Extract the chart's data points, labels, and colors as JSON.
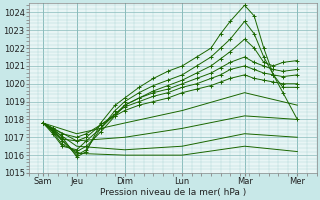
{
  "xlabel": "Pression niveau de la mer( hPa )",
  "bg_color": "#c8e8e8",
  "plot_bg_color": "#e8f5f5",
  "grid_color_major": "#88bbbb",
  "grid_color_minor": "#aad4d4",
  "line_color": "#1a6600",
  "ylim": [
    1015.0,
    1024.5
  ],
  "xlim": [
    0.0,
    6.0
  ],
  "yticks": [
    1015,
    1016,
    1017,
    1018,
    1019,
    1020,
    1021,
    1022,
    1023,
    1024
  ],
  "x_labels": [
    "Sam",
    "Jeu",
    "Dim",
    "Lun",
    "Mar",
    "Mer"
  ],
  "x_positions": [
    0.3,
    1.0,
    2.0,
    3.2,
    4.5,
    5.6
  ],
  "lines": [
    {
      "x": [
        0.3,
        0.5,
        0.7,
        1.0,
        1.2,
        1.5,
        1.8,
        2.0,
        2.3,
        2.6,
        2.9,
        3.2,
        3.5,
        3.8,
        4.0,
        4.2,
        4.5,
        4.7,
        4.9,
        5.1,
        5.3,
        5.6
      ],
      "y": [
        1017.8,
        1017.5,
        1017.0,
        1015.9,
        1016.2,
        1017.8,
        1018.8,
        1019.2,
        1019.8,
        1020.3,
        1020.7,
        1021.0,
        1021.5,
        1022.0,
        1022.8,
        1023.5,
        1024.4,
        1023.8,
        1022.0,
        1020.5,
        1019.5,
        1018.0
      ],
      "marker": true
    },
    {
      "x": [
        0.3,
        0.5,
        0.7,
        1.0,
        1.2,
        1.5,
        1.8,
        2.0,
        2.3,
        2.6,
        2.9,
        3.2,
        3.5,
        3.8,
        4.0,
        4.2,
        4.5,
        4.7,
        4.9,
        5.1,
        5.3,
        5.6
      ],
      "y": [
        1017.8,
        1017.4,
        1016.8,
        1016.0,
        1016.3,
        1017.5,
        1018.5,
        1019.0,
        1019.5,
        1019.9,
        1020.2,
        1020.5,
        1021.0,
        1021.5,
        1022.0,
        1022.5,
        1023.5,
        1022.8,
        1021.5,
        1020.5,
        1019.8,
        1019.8
      ],
      "marker": true
    },
    {
      "x": [
        0.3,
        0.5,
        0.7,
        1.0,
        1.2,
        1.5,
        1.8,
        2.0,
        2.3,
        2.6,
        2.9,
        3.2,
        3.5,
        3.8,
        4.0,
        4.2,
        4.5,
        4.7,
        4.9,
        5.1,
        5.3,
        5.6
      ],
      "y": [
        1017.8,
        1017.3,
        1016.6,
        1016.2,
        1016.5,
        1017.3,
        1018.2,
        1018.8,
        1019.2,
        1019.6,
        1019.9,
        1020.2,
        1020.6,
        1021.0,
        1021.4,
        1021.8,
        1022.5,
        1022.0,
        1021.2,
        1021.0,
        1021.2,
        1021.3
      ],
      "marker": true
    },
    {
      "x": [
        0.3,
        0.5,
        0.7,
        1.0,
        1.2,
        1.5,
        1.8,
        2.0,
        2.3,
        2.6,
        2.9,
        3.2,
        3.5,
        3.8,
        4.0,
        4.2,
        4.5,
        4.7,
        4.9,
        5.1,
        5.3,
        5.6
      ],
      "y": [
        1017.8,
        1017.2,
        1016.5,
        1016.3,
        1016.8,
        1017.5,
        1018.3,
        1018.8,
        1019.2,
        1019.5,
        1019.7,
        1020.0,
        1020.3,
        1020.6,
        1020.9,
        1021.2,
        1021.5,
        1021.2,
        1021.0,
        1020.8,
        1020.7,
        1020.8
      ],
      "marker": true
    },
    {
      "x": [
        0.3,
        0.5,
        0.7,
        1.0,
        1.2,
        1.5,
        1.8,
        2.0,
        2.3,
        2.6,
        2.9,
        3.2,
        3.5,
        3.8,
        4.0,
        4.2,
        4.5,
        4.7,
        4.9,
        5.1,
        5.3,
        5.6
      ],
      "y": [
        1017.8,
        1017.4,
        1016.9,
        1016.8,
        1017.0,
        1017.7,
        1018.3,
        1018.7,
        1019.0,
        1019.3,
        1019.5,
        1019.8,
        1020.0,
        1020.3,
        1020.5,
        1020.8,
        1021.0,
        1020.8,
        1020.6,
        1020.5,
        1020.4,
        1020.5
      ],
      "marker": true
    },
    {
      "x": [
        0.3,
        0.5,
        0.7,
        1.0,
        1.2,
        1.5,
        1.8,
        2.0,
        2.3,
        2.6,
        2.9,
        3.2,
        3.5,
        3.8,
        4.0,
        4.2,
        4.5,
        4.7,
        4.9,
        5.1,
        5.3,
        5.6
      ],
      "y": [
        1017.8,
        1017.5,
        1017.2,
        1017.0,
        1017.2,
        1017.7,
        1018.2,
        1018.5,
        1018.8,
        1019.0,
        1019.2,
        1019.5,
        1019.7,
        1019.9,
        1020.1,
        1020.3,
        1020.5,
        1020.3,
        1020.2,
        1020.1,
        1020.0,
        1020.0
      ],
      "marker": true
    },
    {
      "x": [
        0.3,
        1.0,
        2.0,
        3.2,
        4.5,
        5.6
      ],
      "y": [
        1017.8,
        1017.2,
        1017.8,
        1018.5,
        1019.5,
        1018.8
      ],
      "marker": false
    },
    {
      "x": [
        0.3,
        1.0,
        2.0,
        3.2,
        4.5,
        5.6
      ],
      "y": [
        1017.8,
        1016.8,
        1017.0,
        1017.5,
        1018.2,
        1018.0
      ],
      "marker": false
    },
    {
      "x": [
        0.3,
        1.0,
        2.0,
        3.2,
        4.5,
        5.6
      ],
      "y": [
        1017.8,
        1016.5,
        1016.3,
        1016.5,
        1017.2,
        1017.0
      ],
      "marker": false
    },
    {
      "x": [
        0.3,
        1.0,
        2.0,
        3.2,
        4.5,
        5.6
      ],
      "y": [
        1017.8,
        1016.1,
        1016.0,
        1016.0,
        1016.5,
        1016.2
      ],
      "marker": false
    }
  ]
}
